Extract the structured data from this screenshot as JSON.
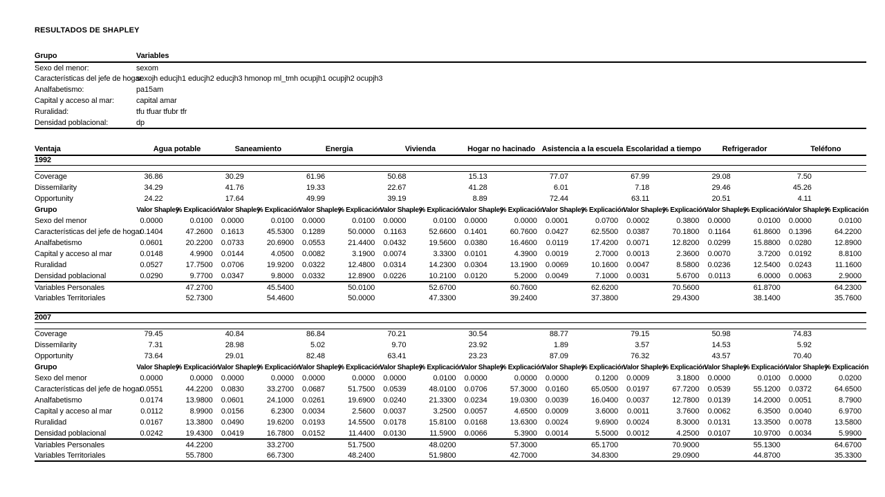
{
  "title": "RESULTADOS DE SHAPLEY",
  "groups_table": {
    "headers": [
      "Grupo",
      "Variables"
    ],
    "rows": [
      [
        "Sexo del menor:",
        "sexom"
      ],
      [
        "Características del jefe de hogar:",
        "sexojh educjh1 educjh2 educjh3 hmonop ml_tmh ocupjh1 ocupjh2 ocupjh3"
      ],
      [
        "Analfabetismo:",
        "pa15am"
      ],
      [
        "Capital y acceso al mar:",
        "capital amar"
      ],
      [
        "Ruralidad:",
        "tfu tfuar tfubr tfr"
      ],
      [
        "Densidad poblacional:",
        "dp"
      ]
    ]
  },
  "main_table": {
    "first_header": "Ventaja",
    "grupo_label": "Grupo",
    "columns": [
      "Agua potable",
      "Saneamiento",
      "Energia",
      "Vivienda",
      "Hogar no hacinado",
      "Asistencia a la escuela",
      "Escolaridad a tiempo",
      "Refrigerador",
      "Teléfono"
    ],
    "subheaders": [
      "Valor Shapley",
      "% Explicación"
    ],
    "sections": [
      {
        "year": "1992",
        "summary_rows": [
          {
            "label": "Coverage",
            "values": [
              "36.86",
              "30.29",
              "61.96",
              "50.68",
              "15.13",
              "77.07",
              "67.99",
              "29.08",
              "7.50"
            ]
          },
          {
            "label": "Dissemilarity",
            "values": [
              "34.29",
              "41.76",
              "19.33",
              "22.67",
              "41.28",
              "6.01",
              "7.18",
              "29.46",
              "45.26"
            ]
          },
          {
            "label": "Opportunity",
            "values": [
              "24.22",
              "17.64",
              "49.99",
              "39.19",
              "8.89",
              "72.44",
              "63.11",
              "20.51",
              "4.11"
            ]
          }
        ],
        "group_rows": [
          {
            "label": "Sexo del menor",
            "pairs": [
              [
                "0.0000",
                "0.0100"
              ],
              [
                "0.0000",
                "0.0100"
              ],
              [
                "0.0000",
                "0.0100"
              ],
              [
                "0.0000",
                "0.0100"
              ],
              [
                "0.0000",
                "0.0000"
              ],
              [
                "0.0001",
                "0.0700"
              ],
              [
                "0.0002",
                "0.3800"
              ],
              [
                "0.0000",
                "0.0100"
              ],
              [
                "0.0000",
                "0.0100"
              ]
            ]
          },
          {
            "label": "Características del jefe de hogar",
            "pairs": [
              [
                "0.1404",
                "47.2600"
              ],
              [
                "0.1613",
                "45.5300"
              ],
              [
                "0.1289",
                "50.0000"
              ],
              [
                "0.1163",
                "52.6600"
              ],
              [
                "0.1401",
                "60.7600"
              ],
              [
                "0.0427",
                "62.5500"
              ],
              [
                "0.0387",
                "70.1800"
              ],
              [
                "0.1164",
                "61.8600"
              ],
              [
                "0.1396",
                "64.2200"
              ]
            ]
          },
          {
            "label": "Analfabetismo",
            "pairs": [
              [
                "0.0601",
                "20.2200"
              ],
              [
                "0.0733",
                "20.6900"
              ],
              [
                "0.0553",
                "21.4400"
              ],
              [
                "0.0432",
                "19.5600"
              ],
              [
                "0.0380",
                "16.4600"
              ],
              [
                "0.0119",
                "17.4200"
              ],
              [
                "0.0071",
                "12.8200"
              ],
              [
                "0.0299",
                "15.8800"
              ],
              [
                "0.0280",
                "12.8900"
              ]
            ]
          },
          {
            "label": "Capital y acceso al mar",
            "pairs": [
              [
                "0.0148",
                "4.9900"
              ],
              [
                "0.0144",
                "4.0500"
              ],
              [
                "0.0082",
                "3.1900"
              ],
              [
                "0.0074",
                "3.3300"
              ],
              [
                "0.0101",
                "4.3900"
              ],
              [
                "0.0019",
                "2.7000"
              ],
              [
                "0.0013",
                "2.3600"
              ],
              [
                "0.0070",
                "3.7200"
              ],
              [
                "0.0192",
                "8.8100"
              ]
            ]
          },
          {
            "label": "Ruralidad",
            "pairs": [
              [
                "0.0527",
                "17.7500"
              ],
              [
                "0.0706",
                "19.9200"
              ],
              [
                "0.0322",
                "12.4800"
              ],
              [
                "0.0314",
                "14.2300"
              ],
              [
                "0.0304",
                "13.1900"
              ],
              [
                "0.0069",
                "10.1600"
              ],
              [
                "0.0047",
                "8.5800"
              ],
              [
                "0.0236",
                "12.5400"
              ],
              [
                "0.0243",
                "11.1600"
              ]
            ]
          },
          {
            "label": "Densidad poblacional",
            "pairs": [
              [
                "0.0290",
                "9.7700"
              ],
              [
                "0.0347",
                "9.8000"
              ],
              [
                "0.0332",
                "12.8900"
              ],
              [
                "0.0226",
                "10.2100"
              ],
              [
                "0.0120",
                "5.2000"
              ],
              [
                "0.0049",
                "7.1000"
              ],
              [
                "0.0031",
                "5.6700"
              ],
              [
                "0.0113",
                "6.0000"
              ],
              [
                "0.0063",
                "2.9000"
              ]
            ]
          }
        ],
        "total_rows": [
          {
            "label": "Variables Personales",
            "values": [
              "47.2700",
              "45.5400",
              "50.0100",
              "52.6700",
              "60.7600",
              "62.6200",
              "70.5600",
              "61.8700",
              "64.2300"
            ]
          },
          {
            "label": "Variables Territoriales",
            "values": [
              "52.7300",
              "54.4600",
              "50.0000",
              "47.3300",
              "39.2400",
              "37.3800",
              "29.4300",
              "38.1400",
              "35.7600"
            ]
          }
        ]
      },
      {
        "year": "2007",
        "summary_rows": [
          {
            "label": "Coverage",
            "values": [
              "79.45",
              "40.84",
              "86.84",
              "70.21",
              "30.54",
              "88.77",
              "79.15",
              "50.98",
              "74.83"
            ]
          },
          {
            "label": "Dissemilarity",
            "values": [
              "7.31",
              "28.98",
              "5.02",
              "9.70",
              "23.92",
              "1.89",
              "3.57",
              "14.53",
              "5.92"
            ]
          },
          {
            "label": "Opportunity",
            "values": [
              "73.64",
              "29.01",
              "82.48",
              "63.41",
              "23.23",
              "87.09",
              "76.32",
              "43.57",
              "70.40"
            ]
          }
        ],
        "group_rows": [
          {
            "label": "Sexo del menor",
            "pairs": [
              [
                "0.0000",
                "0.0000"
              ],
              [
                "0.0000",
                "0.0000"
              ],
              [
                "0.0000",
                "0.0000"
              ],
              [
                "0.0000",
                "0.0100"
              ],
              [
                "0.0000",
                "0.0000"
              ],
              [
                "0.0000",
                "0.1200"
              ],
              [
                "0.0009",
                "3.1800"
              ],
              [
                "0.0000",
                "0.0100"
              ],
              [
                "0.0000",
                "0.0200"
              ]
            ]
          },
          {
            "label": "Características del jefe de hogar",
            "pairs": [
              [
                "0.0551",
                "44.2200"
              ],
              [
                "0.0830",
                "33.2700"
              ],
              [
                "0.0687",
                "51.7500"
              ],
              [
                "0.0539",
                "48.0100"
              ],
              [
                "0.0706",
                "57.3000"
              ],
              [
                "0.0160",
                "65.0500"
              ],
              [
                "0.0197",
                "67.7200"
              ],
              [
                "0.0539",
                "55.1200"
              ],
              [
                "0.0372",
                "64.6500"
              ]
            ]
          },
          {
            "label": "Analfabetismo",
            "pairs": [
              [
                "0.0174",
                "13.9800"
              ],
              [
                "0.0601",
                "24.1000"
              ],
              [
                "0.0261",
                "19.6900"
              ],
              [
                "0.0240",
                "21.3300"
              ],
              [
                "0.0234",
                "19.0300"
              ],
              [
                "0.0039",
                "16.0400"
              ],
              [
                "0.0037",
                "12.7800"
              ],
              [
                "0.0139",
                "14.2000"
              ],
              [
                "0.0051",
                "8.7900"
              ]
            ]
          },
          {
            "label": "Capital y acceso al mar",
            "pairs": [
              [
                "0.0112",
                "8.9900"
              ],
              [
                "0.0156",
                "6.2300"
              ],
              [
                "0.0034",
                "2.5600"
              ],
              [
                "0.0037",
                "3.2500"
              ],
              [
                "0.0057",
                "4.6500"
              ],
              [
                "0.0009",
                "3.6000"
              ],
              [
                "0.0011",
                "3.7600"
              ],
              [
                "0.0062",
                "6.3500"
              ],
              [
                "0.0040",
                "6.9700"
              ]
            ]
          },
          {
            "label": "Ruralidad",
            "pairs": [
              [
                "0.0167",
                "13.3800"
              ],
              [
                "0.0490",
                "19.6200"
              ],
              [
                "0.0193",
                "14.5500"
              ],
              [
                "0.0178",
                "15.8100"
              ],
              [
                "0.0168",
                "13.6300"
              ],
              [
                "0.0024",
                "9.6900"
              ],
              [
                "0.0024",
                "8.3000"
              ],
              [
                "0.0131",
                "13.3500"
              ],
              [
                "0.0078",
                "13.5800"
              ]
            ]
          },
          {
            "label": "Densidad poblacional",
            "pairs": [
              [
                "0.0242",
                "19.4300"
              ],
              [
                "0.0419",
                "16.7800"
              ],
              [
                "0.0152",
                "11.4400"
              ],
              [
                "0.0130",
                "11.5900"
              ],
              [
                "0.0066",
                "5.3900"
              ],
              [
                "0.0014",
                "5.5000"
              ],
              [
                "0.0012",
                "4.2500"
              ],
              [
                "0.0107",
                "10.9700"
              ],
              [
                "0.0034",
                "5.9900"
              ]
            ]
          }
        ],
        "total_rows": [
          {
            "label": "Variables Personales",
            "values": [
              "44.2200",
              "33.2700",
              "51.7500",
              "48.0200",
              "57.3000",
              "65.1700",
              "70.9000",
              "55.1300",
              "64.6700"
            ]
          },
          {
            "label": "Variables Territoriales",
            "values": [
              "55.7800",
              "66.7300",
              "48.2400",
              "51.9800",
              "42.7000",
              "34.8300",
              "29.0900",
              "44.8700",
              "35.3300"
            ]
          }
        ]
      }
    ]
  }
}
